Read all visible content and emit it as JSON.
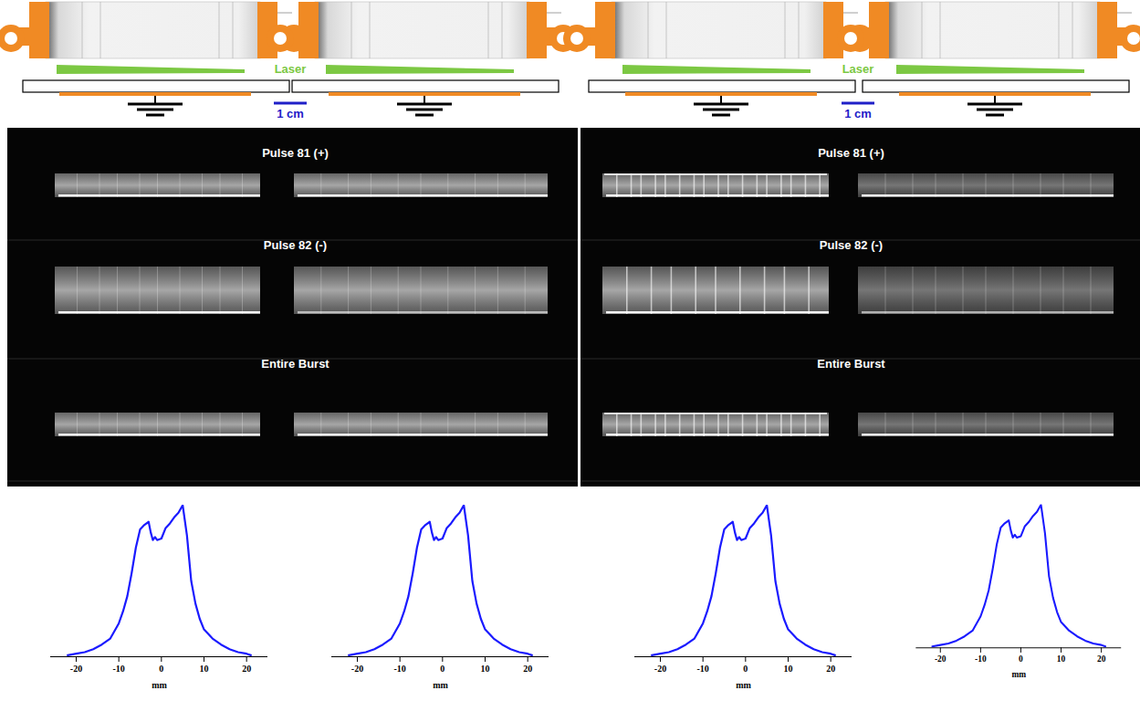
{
  "schematic_groups": [
    {
      "laser_label": "Laser",
      "scale_label": "1 cm"
    },
    {
      "laser_label": "Laser",
      "scale_label": "1 cm"
    }
  ],
  "image_panels": [
    {
      "rows": [
        "Pulse 81 (+)",
        "Pulse 82 (-)",
        "Entire Burst"
      ]
    },
    {
      "rows": [
        "Pulse 81 (+)",
        "Pulse 82 (-)",
        "Entire Burst"
      ]
    }
  ],
  "chart_data": [
    {
      "type": "line",
      "x": [
        -22,
        -20,
        -18,
        -16,
        -14,
        -12,
        -10,
        -9,
        -8,
        -7,
        -6,
        -5,
        -4,
        -3,
        -2.5,
        -2,
        -1.5,
        -1,
        0,
        1,
        2,
        3,
        4,
        5,
        6,
        7,
        8,
        9,
        10,
        12,
        14,
        16,
        18,
        20,
        21
      ],
      "values": [
        0.01,
        0.02,
        0.03,
        0.05,
        0.08,
        0.12,
        0.22,
        0.3,
        0.4,
        0.55,
        0.72,
        0.84,
        0.87,
        0.89,
        0.82,
        0.77,
        0.79,
        0.77,
        0.78,
        0.85,
        0.88,
        0.92,
        0.95,
        1.0,
        0.8,
        0.5,
        0.35,
        0.25,
        0.18,
        0.12,
        0.08,
        0.05,
        0.03,
        0.02,
        0.01
      ],
      "color": "#1a1aff",
      "xlim": [
        -26,
        25
      ],
      "ylim": [
        0,
        1
      ],
      "xticks": [
        -20,
        -10,
        0,
        10,
        20
      ],
      "x_label": "mm",
      "tick_labels": "x"
    },
    {
      "type": "line",
      "x": [
        -22,
        -20,
        -18,
        -16,
        -14,
        -12,
        -10,
        -9,
        -8,
        -7,
        -6,
        -5,
        -4,
        -3,
        -2.5,
        -2,
        -1.5,
        -1,
        0,
        1,
        2,
        3,
        4,
        5,
        6,
        7,
        8,
        9,
        10,
        12,
        14,
        16,
        18,
        20,
        21
      ],
      "values": [
        0.01,
        0.02,
        0.03,
        0.05,
        0.08,
        0.12,
        0.22,
        0.3,
        0.4,
        0.55,
        0.72,
        0.84,
        0.87,
        0.89,
        0.82,
        0.77,
        0.79,
        0.77,
        0.78,
        0.85,
        0.88,
        0.92,
        0.95,
        1.0,
        0.8,
        0.5,
        0.35,
        0.25,
        0.18,
        0.12,
        0.08,
        0.05,
        0.03,
        0.02,
        0.01
      ],
      "color": "#1a1aff",
      "xlim": [
        -26,
        25
      ],
      "ylim": [
        0,
        1
      ],
      "xticks": [
        -20,
        -10,
        0,
        10,
        20
      ],
      "x_label": "mm",
      "tick_labels": "x"
    },
    {
      "type": "line",
      "x": [
        -22,
        -20,
        -18,
        -16,
        -14,
        -12,
        -10,
        -9,
        -8,
        -7,
        -6,
        -5,
        -4,
        -3,
        -2.5,
        -2,
        -1.5,
        -1,
        0,
        1,
        2,
        3,
        4,
        5,
        6,
        7,
        8,
        9,
        10,
        12,
        14,
        16,
        18,
        20,
        21
      ],
      "values": [
        0.01,
        0.02,
        0.03,
        0.05,
        0.08,
        0.12,
        0.22,
        0.3,
        0.4,
        0.55,
        0.72,
        0.84,
        0.87,
        0.89,
        0.82,
        0.77,
        0.79,
        0.77,
        0.78,
        0.85,
        0.88,
        0.92,
        0.95,
        1.0,
        0.8,
        0.5,
        0.35,
        0.25,
        0.18,
        0.12,
        0.08,
        0.05,
        0.03,
        0.02,
        0.01
      ],
      "color": "#1a1aff",
      "xlim": [
        -26,
        25
      ],
      "ylim": [
        0,
        1
      ],
      "xticks": [
        -20,
        -10,
        0,
        10,
        20
      ],
      "x_label": "mm",
      "tick_labels": "x"
    },
    {
      "type": "line",
      "x": [
        -22,
        -20,
        -18,
        -16,
        -14,
        -12,
        -10,
        -9,
        -8,
        -7,
        -6,
        -5,
        -4,
        -3,
        -2.5,
        -2,
        -1.5,
        -1,
        0,
        1,
        2,
        3,
        4,
        5,
        6,
        7,
        8,
        9,
        10,
        12,
        14,
        16,
        18,
        20,
        21
      ],
      "values": [
        0.01,
        0.02,
        0.03,
        0.05,
        0.08,
        0.12,
        0.22,
        0.3,
        0.4,
        0.55,
        0.72,
        0.84,
        0.87,
        0.89,
        0.82,
        0.77,
        0.79,
        0.77,
        0.78,
        0.85,
        0.88,
        0.92,
        0.95,
        1.0,
        0.8,
        0.5,
        0.35,
        0.25,
        0.18,
        0.12,
        0.08,
        0.05,
        0.03,
        0.02,
        0.01
      ],
      "color": "#1a1aff",
      "xlim": [
        -26,
        25
      ],
      "ylim": [
        0,
        1
      ],
      "xticks": [
        -20,
        -10,
        0,
        10,
        20
      ],
      "x_label": "mm",
      "tick_labels": "x"
    }
  ]
}
